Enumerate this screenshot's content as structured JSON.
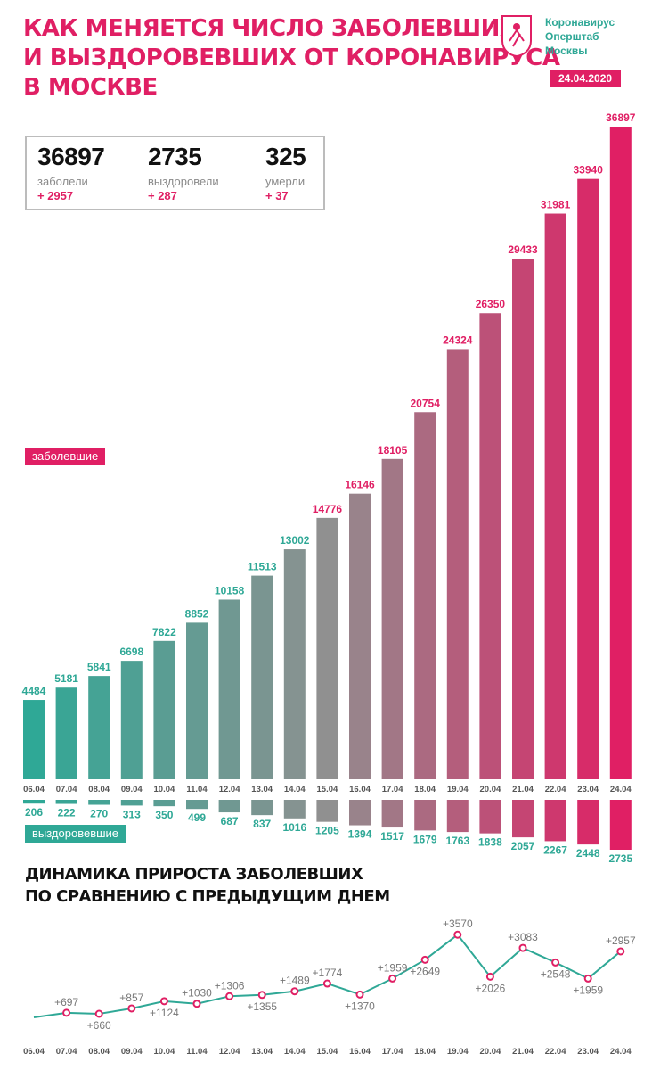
{
  "header": {
    "title_lines": [
      "КАК МЕНЯЕТСЯ ЧИСЛО ЗАБОЛЕВШИХ",
      "И ВЫЗДОРОВЕВШИХ ОТ КОРОНАВИРУСА",
      "В МОСКВЕ"
    ],
    "logo_lines": [
      "Коронавирус",
      "Оперштаб",
      "Москвы"
    ],
    "date": "24.04.2020"
  },
  "stats": {
    "infected": {
      "value": "36897",
      "label": "заболели",
      "delta": "+ 2957"
    },
    "recovered": {
      "value": "2735",
      "label": "выздоровели",
      "delta": "+ 287"
    },
    "deaths": {
      "value": "325",
      "label": "умерли",
      "delta": "+ 37"
    }
  },
  "legend": {
    "infected": "заболевшие",
    "recovered": "выздоровевшие"
  },
  "subtitle_lines": [
    "ДИНАМИКА ПРИРОСТА ЗАБОЛЕВШИХ",
    "ПО СРАВНЕНИЮ С ПРЕДЫДУЩИМ ДНЕМ"
  ],
  "colors": {
    "pink": "#e01f64",
    "teal": "#2fa896",
    "gray": "#909090"
  },
  "chart_data": [
    {
      "type": "bar",
      "categories": [
        "06.04",
        "07.04",
        "08.04",
        "09.04",
        "10.04",
        "11.04",
        "12.04",
        "13.04",
        "14.04",
        "15.04",
        "16.04",
        "17.04",
        "18.04",
        "19.04",
        "20.04",
        "21.04",
        "22.04",
        "23.04",
        "24.04"
      ],
      "series": [
        {
          "name": "заболевшие",
          "values": [
            4484,
            5181,
            5841,
            6698,
            7822,
            8852,
            10158,
            11513,
            13002,
            14776,
            16146,
            18105,
            20754,
            24324,
            26350,
            29433,
            31981,
            33940,
            36897
          ]
        },
        {
          "name": "выздоровевшие",
          "values": [
            206,
            222,
            270,
            313,
            350,
            499,
            687,
            837,
            1016,
            1205,
            1394,
            1517,
            1679,
            1763,
            1838,
            2057,
            2267,
            2448,
            2735
          ]
        }
      ]
    },
    {
      "type": "line",
      "x": [
        "06.04",
        "07.04",
        "08.04",
        "09.04",
        "10.04",
        "11.04",
        "12.04",
        "13.04",
        "14.04",
        "15.04",
        "16.04",
        "17.04",
        "18.04",
        "19.04",
        "20.04",
        "21.04",
        "22.04",
        "23.04",
        "24.04"
      ],
      "values": [
        null,
        697,
        660,
        857,
        1124,
        1030,
        1306,
        1355,
        1489,
        1774,
        1370,
        1959,
        2649,
        3570,
        2026,
        3083,
        2548,
        1959,
        2957
      ],
      "labels": [
        "",
        "+697",
        "+660",
        "+857",
        "+1124",
        "+1030",
        "+1306",
        "+1355",
        "+1489",
        "+1774",
        "+1370",
        "+1959",
        "+2649",
        "+3570",
        "+2026",
        "+3083",
        "+2548",
        "+1959",
        "+2957"
      ],
      "label_above": [
        false,
        true,
        false,
        true,
        false,
        true,
        true,
        false,
        true,
        true,
        false,
        true,
        false,
        true,
        false,
        true,
        false,
        false,
        true
      ]
    }
  ]
}
